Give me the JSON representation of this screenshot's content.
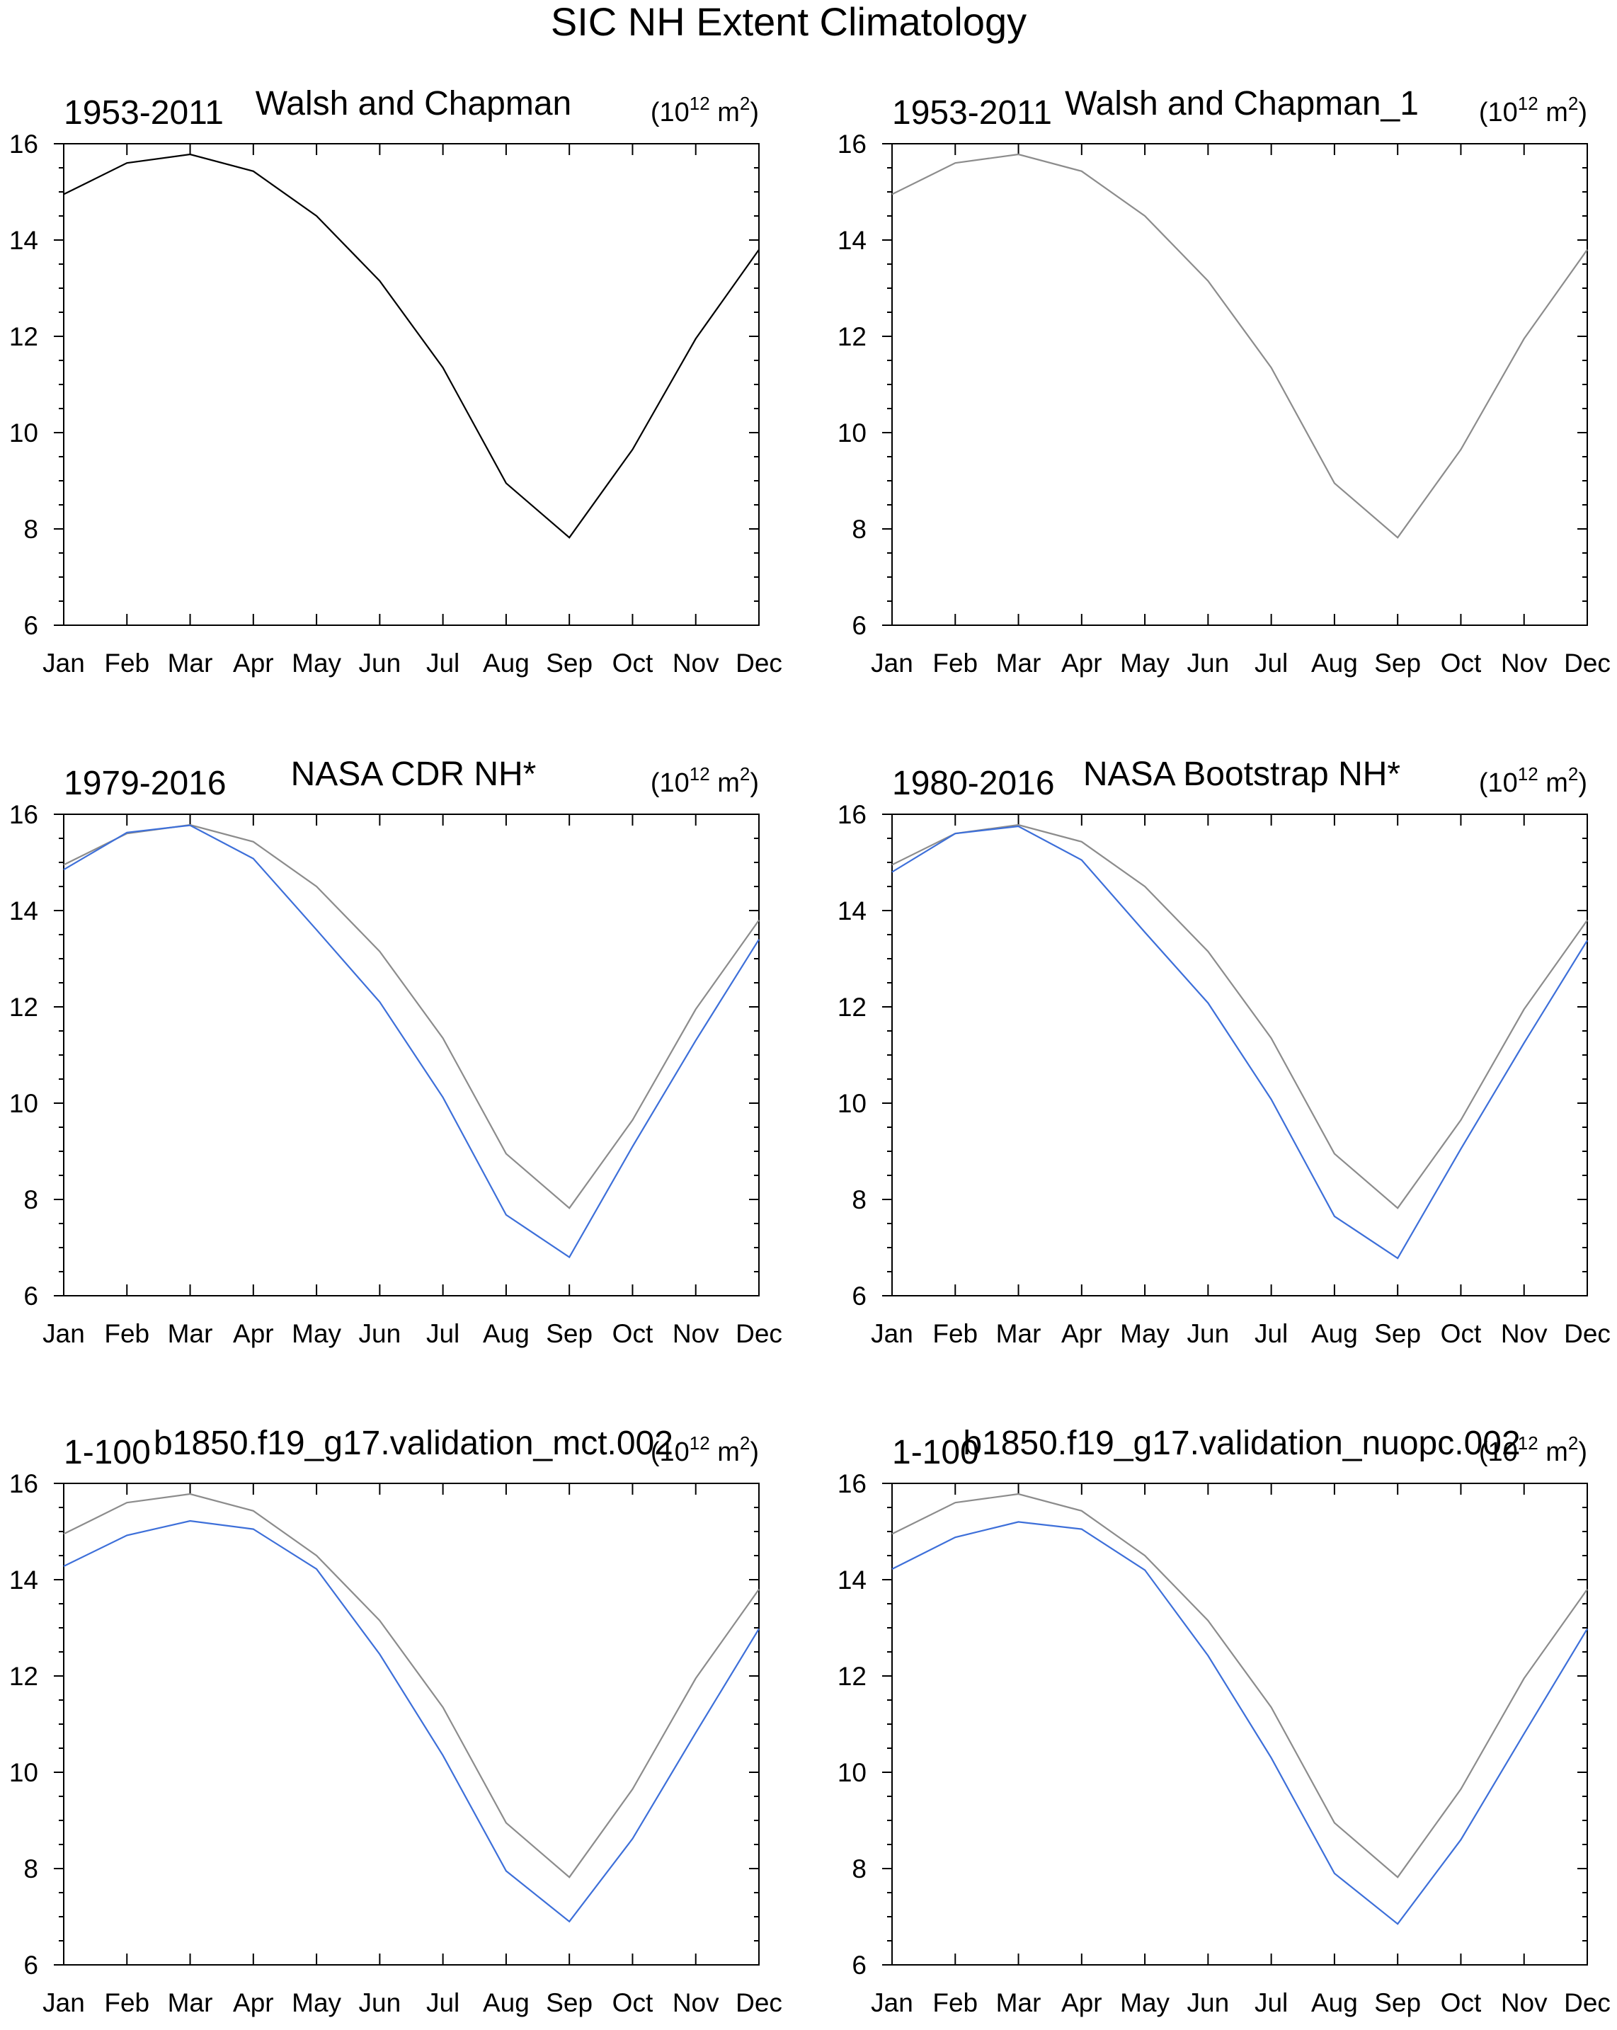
{
  "figure_title": "SIC NH Extent Climatology",
  "units": {
    "prefix": "(10",
    "exponent": "12",
    "mid": " m",
    "sup2": "2",
    "suffix": ")"
  },
  "colors": {
    "observation_line": "#000000",
    "reference_line": "#8c8c8c",
    "model_line": "#3d6fd9",
    "axis": "#000000"
  },
  "chart_data": [
    {
      "type": "line",
      "years_label": "1953-2011",
      "title": "Walsh and Chapman",
      "xlabel": "",
      "ylabel": "",
      "categories": [
        "Jan",
        "Feb",
        "Mar",
        "Apr",
        "May",
        "Jun",
        "Jul",
        "Aug",
        "Sep",
        "Oct",
        "Nov",
        "Dec"
      ],
      "yticks": [
        "6",
        "8",
        "10",
        "12",
        "14",
        "16"
      ],
      "ylim": [
        6,
        16
      ],
      "series": [
        {
          "name": "Walsh and Chapman",
          "role": "observation",
          "values": [
            14.95,
            15.6,
            15.78,
            15.43,
            14.5,
            13.15,
            11.35,
            8.95,
            7.82,
            9.65,
            11.95,
            13.8
          ]
        }
      ]
    },
    {
      "type": "line",
      "years_label": "1953-2011",
      "title": "Walsh and Chapman_1",
      "xlabel": "",
      "ylabel": "",
      "categories": [
        "Jan",
        "Feb",
        "Mar",
        "Apr",
        "May",
        "Jun",
        "Jul",
        "Aug",
        "Sep",
        "Oct",
        "Nov",
        "Dec"
      ],
      "yticks": [
        "6",
        "8",
        "10",
        "12",
        "14",
        "16"
      ],
      "ylim": [
        6,
        16
      ],
      "series": [
        {
          "name": "Walsh and Chapman_1",
          "role": "reference",
          "values": [
            14.95,
            15.6,
            15.78,
            15.43,
            14.5,
            13.15,
            11.35,
            8.95,
            7.82,
            9.65,
            11.95,
            13.8
          ]
        }
      ]
    },
    {
      "type": "line",
      "years_label": "1979-2016",
      "title": "NASA CDR NH*",
      "xlabel": "",
      "ylabel": "",
      "categories": [
        "Jan",
        "Feb",
        "Mar",
        "Apr",
        "May",
        "Jun",
        "Jul",
        "Aug",
        "Sep",
        "Oct",
        "Nov",
        "Dec"
      ],
      "yticks": [
        "6",
        "8",
        "10",
        "12",
        "14",
        "16"
      ],
      "ylim": [
        6,
        16
      ],
      "series": [
        {
          "name": "Walsh and Chapman",
          "role": "reference",
          "values": [
            14.95,
            15.6,
            15.78,
            15.43,
            14.5,
            13.15,
            11.35,
            8.95,
            7.82,
            9.65,
            11.95,
            13.8
          ]
        },
        {
          "name": "NASA CDR NH*",
          "role": "model",
          "values": [
            14.85,
            15.62,
            15.77,
            15.08,
            13.6,
            12.1,
            10.12,
            7.68,
            6.8,
            9.1,
            11.3,
            13.4
          ]
        }
      ]
    },
    {
      "type": "line",
      "years_label": "1980-2016",
      "title": "NASA Bootstrap NH*",
      "xlabel": "",
      "ylabel": "",
      "categories": [
        "Jan",
        "Feb",
        "Mar",
        "Apr",
        "May",
        "Jun",
        "Jul",
        "Aug",
        "Sep",
        "Oct",
        "Nov",
        "Dec"
      ],
      "yticks": [
        "6",
        "8",
        "10",
        "12",
        "14",
        "16"
      ],
      "ylim": [
        6,
        16
      ],
      "series": [
        {
          "name": "Walsh and Chapman",
          "role": "reference",
          "values": [
            14.95,
            15.6,
            15.78,
            15.43,
            14.5,
            13.15,
            11.35,
            8.95,
            7.82,
            9.65,
            11.95,
            13.8
          ]
        },
        {
          "name": "NASA Bootstrap NH*",
          "role": "model",
          "values": [
            14.8,
            15.6,
            15.75,
            15.05,
            13.55,
            12.08,
            10.08,
            7.65,
            6.78,
            9.05,
            11.25,
            13.38
          ]
        }
      ]
    },
    {
      "type": "line",
      "years_label": "1-100",
      "title": "b1850.f19_g17.validation_mct.002",
      "xlabel": "",
      "ylabel": "",
      "categories": [
        "Jan",
        "Feb",
        "Mar",
        "Apr",
        "May",
        "Jun",
        "Jul",
        "Aug",
        "Sep",
        "Oct",
        "Nov",
        "Dec"
      ],
      "yticks": [
        "6",
        "8",
        "10",
        "12",
        "14",
        "16"
      ],
      "ylim": [
        6,
        16
      ],
      "series": [
        {
          "name": "Walsh and Chapman",
          "role": "reference",
          "values": [
            14.95,
            15.6,
            15.78,
            15.43,
            14.5,
            13.15,
            11.35,
            8.95,
            7.82,
            9.65,
            11.95,
            13.8
          ]
        },
        {
          "name": "b1850.f19_g17.validation_mct.002",
          "role": "model",
          "values": [
            14.28,
            14.92,
            15.22,
            15.05,
            14.22,
            12.45,
            10.35,
            7.95,
            6.9,
            8.62,
            10.82,
            12.98
          ]
        }
      ]
    },
    {
      "type": "line",
      "years_label": "1-100",
      "title": "b1850.f19_g17.validation_nuopc.002",
      "xlabel": "",
      "ylabel": "",
      "categories": [
        "Jan",
        "Feb",
        "Mar",
        "Apr",
        "May",
        "Jun",
        "Jul",
        "Aug",
        "Sep",
        "Oct",
        "Nov",
        "Dec"
      ],
      "yticks": [
        "6",
        "8",
        "10",
        "12",
        "14",
        "16"
      ],
      "ylim": [
        6,
        16
      ],
      "series": [
        {
          "name": "Walsh and Chapman",
          "role": "reference",
          "values": [
            14.95,
            15.6,
            15.78,
            15.43,
            14.5,
            13.15,
            11.35,
            8.95,
            7.82,
            9.65,
            11.95,
            13.8
          ]
        },
        {
          "name": "b1850.f19_g17.validation_nuopc.002",
          "role": "model",
          "values": [
            14.22,
            14.88,
            15.2,
            15.05,
            14.2,
            12.42,
            10.3,
            7.9,
            6.85,
            8.6,
            10.8,
            12.98
          ]
        }
      ]
    }
  ]
}
